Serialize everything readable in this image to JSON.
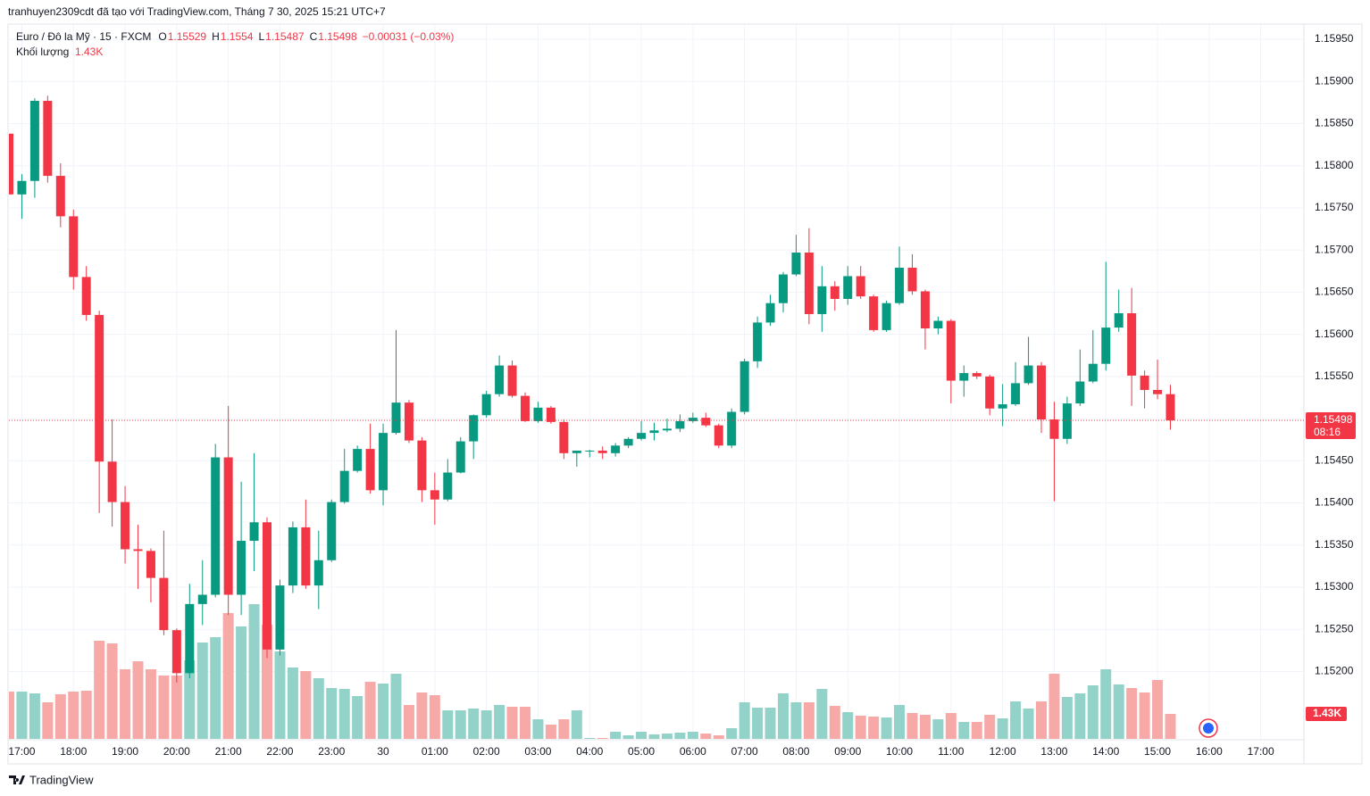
{
  "chart_data": {
    "type": "candlestick",
    "attribution": "tranhuyen2309cdt đã tạo với TradingView.com, Tháng 7 30, 2025 15:21 UTC+7",
    "symbol": "Euro / Đô la Mỹ · 15 · FXCM",
    "ohlc_letters": [
      "O",
      "H",
      "L",
      "C"
    ],
    "change": "−0.00031 (−0.03%)",
    "volume_title": "Khối lượng",
    "volume_label": "1.43K",
    "countdown": "08:16",
    "brand": "TradingView",
    "up_color": "#089981",
    "down_color": "#f23645",
    "volume_up_color": "#92d2c8",
    "volume_down_color": "#f7a9a8",
    "grid": true,
    "open": [
      1.15838,
      1.15766,
      1.15782,
      1.15877,
      1.15788,
      1.1574,
      1.15668,
      1.15623,
      1.15449,
      1.15401,
      1.15345,
      1.15343,
      1.15311,
      1.15249,
      1.15198,
      1.1528,
      1.15291,
      1.15454,
      1.15291,
      1.15355,
      1.15377,
      1.15226,
      1.15302,
      1.15371,
      1.15302,
      1.15332,
      1.15401,
      1.15438,
      1.15464,
      1.15415,
      1.15483,
      1.15519,
      1.15474,
      1.15415,
      1.15404,
      1.15436,
      1.15473,
      1.15504,
      1.15529,
      1.15563,
      1.15527,
      1.15497,
      1.15513,
      1.15496,
      1.15459,
      1.15462,
      1.15462,
      1.15459,
      1.15468,
      1.15476,
      1.15483,
      1.15486,
      1.15488,
      1.15497,
      1.15501,
      1.15492,
      1.15468,
      1.15508,
      1.15568,
      1.15614,
      1.15637,
      1.15671,
      1.15697,
      1.15624,
      1.15657,
      1.15642,
      1.15669,
      1.15645,
      1.15605,
      1.15637,
      1.15679,
      1.15651,
      1.15607,
      1.15616,
      1.15545,
      1.15554,
      1.1555,
      1.15512,
      1.15517,
      1.15542,
      1.15563,
      1.15499,
      1.15476,
      1.15518,
      1.15544,
      1.15565,
      1.15608,
      1.15625,
      1.15551,
      1.15534,
      1.15529
    ],
    "high": [
      1.15838,
      1.1579,
      1.1588,
      1.15883,
      1.15803,
      1.15748,
      1.15681,
      1.15628,
      1.15499,
      1.1542,
      1.15374,
      1.15346,
      1.15367,
      1.15251,
      1.15304,
      1.15332,
      1.1547,
      1.15515,
      1.15425,
      1.15459,
      1.15383,
      1.15309,
      1.15378,
      1.15404,
      1.15367,
      1.15404,
      1.15464,
      1.15468,
      1.15494,
      1.15494,
      1.15605,
      1.15522,
      1.15478,
      1.15436,
      1.15452,
      1.15478,
      1.15505,
      1.15533,
      1.15575,
      1.15569,
      1.15531,
      1.1552,
      1.15515,
      1.15499,
      1.15462,
      1.15463,
      1.15467,
      1.15471,
      1.15478,
      1.15497,
      1.15495,
      1.155,
      1.15505,
      1.15507,
      1.15507,
      1.15494,
      1.15512,
      1.15571,
      1.15621,
      1.15647,
      1.15674,
      1.15718,
      1.15726,
      1.15681,
      1.15663,
      1.15681,
      1.15681,
      1.15647,
      1.1564,
      1.15704,
      1.15695,
      1.15653,
      1.15621,
      1.15618,
      1.15563,
      1.15556,
      1.15552,
      1.15541,
      1.15567,
      1.15597,
      1.15567,
      1.1552,
      1.15526,
      1.15582,
      1.15605,
      1.15686,
      1.15653,
      1.15655,
      1.15557,
      1.1557,
      1.1554
    ],
    "low": [
      1.15766,
      1.15737,
      1.15762,
      1.1578,
      1.15727,
      1.15653,
      1.15616,
      1.15388,
      1.15372,
      1.15328,
      1.15298,
      1.15282,
      1.15243,
      1.15187,
      1.15192,
      1.15255,
      1.15288,
      1.15267,
      1.15267,
      1.15319,
      1.15216,
      1.15219,
      1.15293,
      1.15298,
      1.15274,
      1.1533,
      1.15399,
      1.15436,
      1.15411,
      1.15397,
      1.15481,
      1.15471,
      1.15401,
      1.15374,
      1.15402,
      1.15435,
      1.15452,
      1.15501,
      1.15526,
      1.15525,
      1.15496,
      1.15495,
      1.15494,
      1.15452,
      1.15443,
      1.15454,
      1.15452,
      1.15455,
      1.15465,
      1.15474,
      1.15474,
      1.15484,
      1.15484,
      1.15495,
      1.1549,
      1.15465,
      1.15465,
      1.15505,
      1.1556,
      1.1561,
      1.15626,
      1.15669,
      1.15612,
      1.15603,
      1.15628,
      1.15635,
      1.15642,
      1.15603,
      1.15603,
      1.15635,
      1.15647,
      1.15582,
      1.156,
      1.15518,
      1.15526,
      1.15547,
      1.15504,
      1.15491,
      1.15515,
      1.1554,
      1.15483,
      1.15402,
      1.1547,
      1.15515,
      1.15542,
      1.15557,
      1.15603,
      1.15515,
      1.15512,
      1.15523,
      1.15487
    ],
    "close": [
      1.15766,
      1.15782,
      1.15877,
      1.15788,
      1.1574,
      1.15668,
      1.15623,
      1.15449,
      1.15401,
      1.15345,
      1.15343,
      1.15311,
      1.15249,
      1.15198,
      1.1528,
      1.15291,
      1.15454,
      1.15291,
      1.15355,
      1.15377,
      1.15226,
      1.15302,
      1.15371,
      1.15302,
      1.15332,
      1.15401,
      1.15438,
      1.15464,
      1.15415,
      1.15483,
      1.15519,
      1.15474,
      1.15415,
      1.15404,
      1.15436,
      1.15473,
      1.15504,
      1.15529,
      1.15563,
      1.15527,
      1.15497,
      1.15513,
      1.15496,
      1.15459,
      1.15462,
      1.15462,
      1.15459,
      1.15468,
      1.15476,
      1.15483,
      1.15486,
      1.15488,
      1.15497,
      1.15501,
      1.15492,
      1.15468,
      1.15508,
      1.15568,
      1.15614,
      1.15637,
      1.15671,
      1.15697,
      1.15624,
      1.15657,
      1.15642,
      1.15669,
      1.15645,
      1.15605,
      1.15637,
      1.15679,
      1.15651,
      1.15607,
      1.15616,
      1.15545,
      1.15554,
      1.1555,
      1.15512,
      1.15517,
      1.15542,
      1.15563,
      1.15499,
      1.15476,
      1.15518,
      1.15544,
      1.15565,
      1.15608,
      1.15625,
      1.15551,
      1.15534,
      1.15529,
      1.15498
    ],
    "volume": [
      2707,
      2707,
      2605,
      2094,
      2554,
      2707,
      2758,
      5618,
      5465,
      3984,
      4443,
      3984,
      3626,
      3626,
      4494,
      5516,
      5822,
      7201,
      6435,
      7712,
      6537,
      5005,
      4086,
      3881,
      3473,
      2911,
      2860,
      2451,
      3268,
      3166,
      3728,
      1941,
      2656,
      2502,
      1634,
      1634,
      1736,
      1634,
      1941,
      1839,
      1839,
      1124,
      817,
      1124,
      1634,
      51,
      51,
      409,
      204,
      409,
      255,
      306,
      357,
      409,
      306,
      204,
      613,
      2094,
      1787,
      1787,
      2605,
      2094,
      2094,
      2860,
      1890,
      1532,
      1328,
      1277,
      1226,
      1941,
      1481,
      1379,
      1124,
      1481,
      970,
      970,
      1379,
      1175,
      2145,
      1736,
      2145,
      3728,
      2400,
      2605,
      3064,
      3984,
      3115,
      2911,
      2656,
      3371,
      1430
    ],
    "x_labels": [
      "17:00",
      "18:00",
      "19:00",
      "20:00",
      "21:00",
      "22:00",
      "23:00",
      "30",
      "01:00",
      "02:00",
      "03:00",
      "04:00",
      "05:00",
      "06:00",
      "07:00",
      "08:00",
      "09:00",
      "10:00",
      "11:00",
      "12:00",
      "13:00",
      "14:00",
      "15:00",
      "16:00",
      "17:00"
    ],
    "ylim": [
      1.1512,
      1.15967
    ],
    "yticks": [
      {
        "value": 1.1595,
        "label": "1.15950"
      },
      {
        "value": 1.159,
        "label": "1.15900"
      },
      {
        "value": 1.1585,
        "label": "1.15850"
      },
      {
        "value": 1.158,
        "label": "1.15800"
      },
      {
        "value": 1.1575,
        "label": "1.15750"
      },
      {
        "value": 1.157,
        "label": "1.15700"
      },
      {
        "value": 1.1565,
        "label": "1.15650"
      },
      {
        "value": 1.156,
        "label": "1.15600"
      },
      {
        "value": 1.1555,
        "label": "1.15550"
      },
      {
        "value": 1.155,
        "label": "1.15500"
      },
      {
        "value": 1.1545,
        "label": "1.15450"
      },
      {
        "value": 1.154,
        "label": "1.15400"
      },
      {
        "value": 1.1535,
        "label": "1.15350"
      },
      {
        "value": 1.153,
        "label": "1.15300"
      },
      {
        "value": 1.1525,
        "label": "1.15250"
      },
      {
        "value": 1.152,
        "label": "1.15200"
      }
    ]
  }
}
